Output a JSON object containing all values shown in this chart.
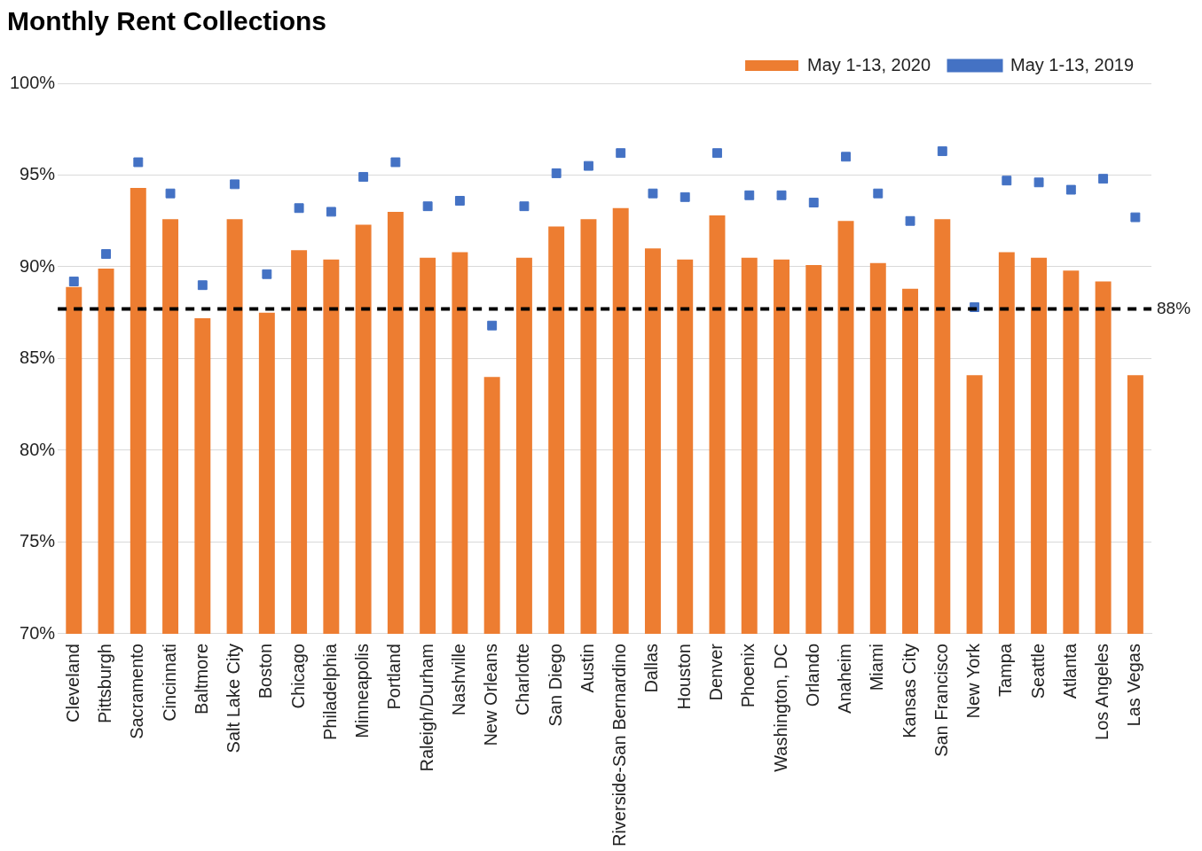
{
  "chart_data": {
    "type": "bar",
    "title": "Monthly Rent Collections",
    "categories": [
      "Cleveland",
      "Pittsburgh",
      "Sacramento",
      "Cincinnati",
      "Baltmore",
      "Salt Lake City",
      "Boston",
      "Chicago",
      "Philadelphia",
      "Minneapolis",
      "Portland",
      "Raleigh/Durham",
      "Nashville",
      "New Orleans",
      "Charlotte",
      "San Diego",
      "Austin",
      "Riverside-San Bernardino",
      "Dallas",
      "Houston",
      "Denver",
      "Phoenix",
      "Washington, DC",
      "Orlando",
      "Anaheim",
      "Miami",
      "Kansas City",
      "San Francisco",
      "New York",
      "Tampa",
      "Seattle",
      "Atlanta",
      "Los Angeles",
      "Las Vegas"
    ],
    "series": [
      {
        "name": "May 1-13, 2020",
        "color": "#ed7d31",
        "values": [
          88.9,
          89.9,
          94.3,
          92.6,
          87.2,
          92.6,
          87.5,
          90.9,
          90.4,
          92.3,
          93.0,
          90.5,
          90.8,
          84.0,
          90.5,
          92.2,
          92.6,
          93.2,
          91.0,
          90.4,
          92.8,
          90.5,
          90.4,
          90.1,
          92.5,
          90.2,
          88.8,
          92.6,
          84.1,
          90.8,
          90.5,
          89.8,
          89.2,
          84.1
        ]
      },
      {
        "name": "May 1-13, 2019",
        "type": "scatter",
        "marker": "square",
        "color": "#4472c4",
        "values": [
          89.2,
          90.7,
          95.7,
          94.0,
          89.0,
          94.5,
          89.6,
          93.2,
          93.0,
          94.9,
          95.7,
          93.3,
          93.6,
          86.8,
          93.3,
          95.1,
          95.5,
          96.2,
          94.0,
          93.8,
          96.2,
          93.9,
          93.9,
          93.5,
          96.0,
          94.0,
          92.5,
          96.3,
          87.8,
          94.7,
          94.6,
          94.2,
          94.8,
          92.7
        ]
      }
    ],
    "ylim": [
      70,
      100
    ],
    "yticks": [
      {
        "value": 70,
        "label": "70%"
      },
      {
        "value": 75,
        "label": "75%"
      },
      {
        "value": 80,
        "label": "80%"
      },
      {
        "value": 85,
        "label": "85%"
      },
      {
        "value": 90,
        "label": "90%"
      },
      {
        "value": 95,
        "label": "95%"
      },
      {
        "value": 100,
        "label": "100%"
      }
    ],
    "grid": "y",
    "legend": "top right",
    "ref_lines": [
      {
        "axis": "y",
        "value": 87.7,
        "label": "88%",
        "color": "#000000",
        "line_style": "dashed"
      }
    ]
  }
}
